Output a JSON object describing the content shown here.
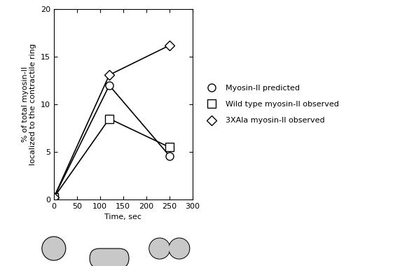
{
  "chart_data": {
    "type": "line",
    "x_label": "Time, sec",
    "y_label": "% of total myosin-II\nlocalized to the contractile ring",
    "x": [
      0,
      120,
      250
    ],
    "series": [
      {
        "name": "Myosin-II predicted",
        "color": "#000000",
        "marker": "circle",
        "line_style": "solid",
        "values": [
          0.2,
          12.0,
          4.6
        ]
      },
      {
        "name": "Wild type myosin-II observed",
        "color": "#000000",
        "marker": "square",
        "line_style": "solid",
        "values": [
          0.2,
          8.5,
          5.5
        ]
      },
      {
        "name": "3XAla myosin-II observed",
        "color": "#000000",
        "marker": "diamond",
        "line_style": "solid",
        "values": [
          0.2,
          13.1,
          16.2
        ]
      }
    ],
    "xlim": [
      0,
      300
    ],
    "xticks": [
      0,
      50,
      100,
      150,
      200,
      250,
      300
    ],
    "ylim": [
      0,
      20
    ],
    "yticks": [
      0,
      5,
      10,
      15,
      20
    ],
    "grid": false,
    "legend": "right"
  }
}
